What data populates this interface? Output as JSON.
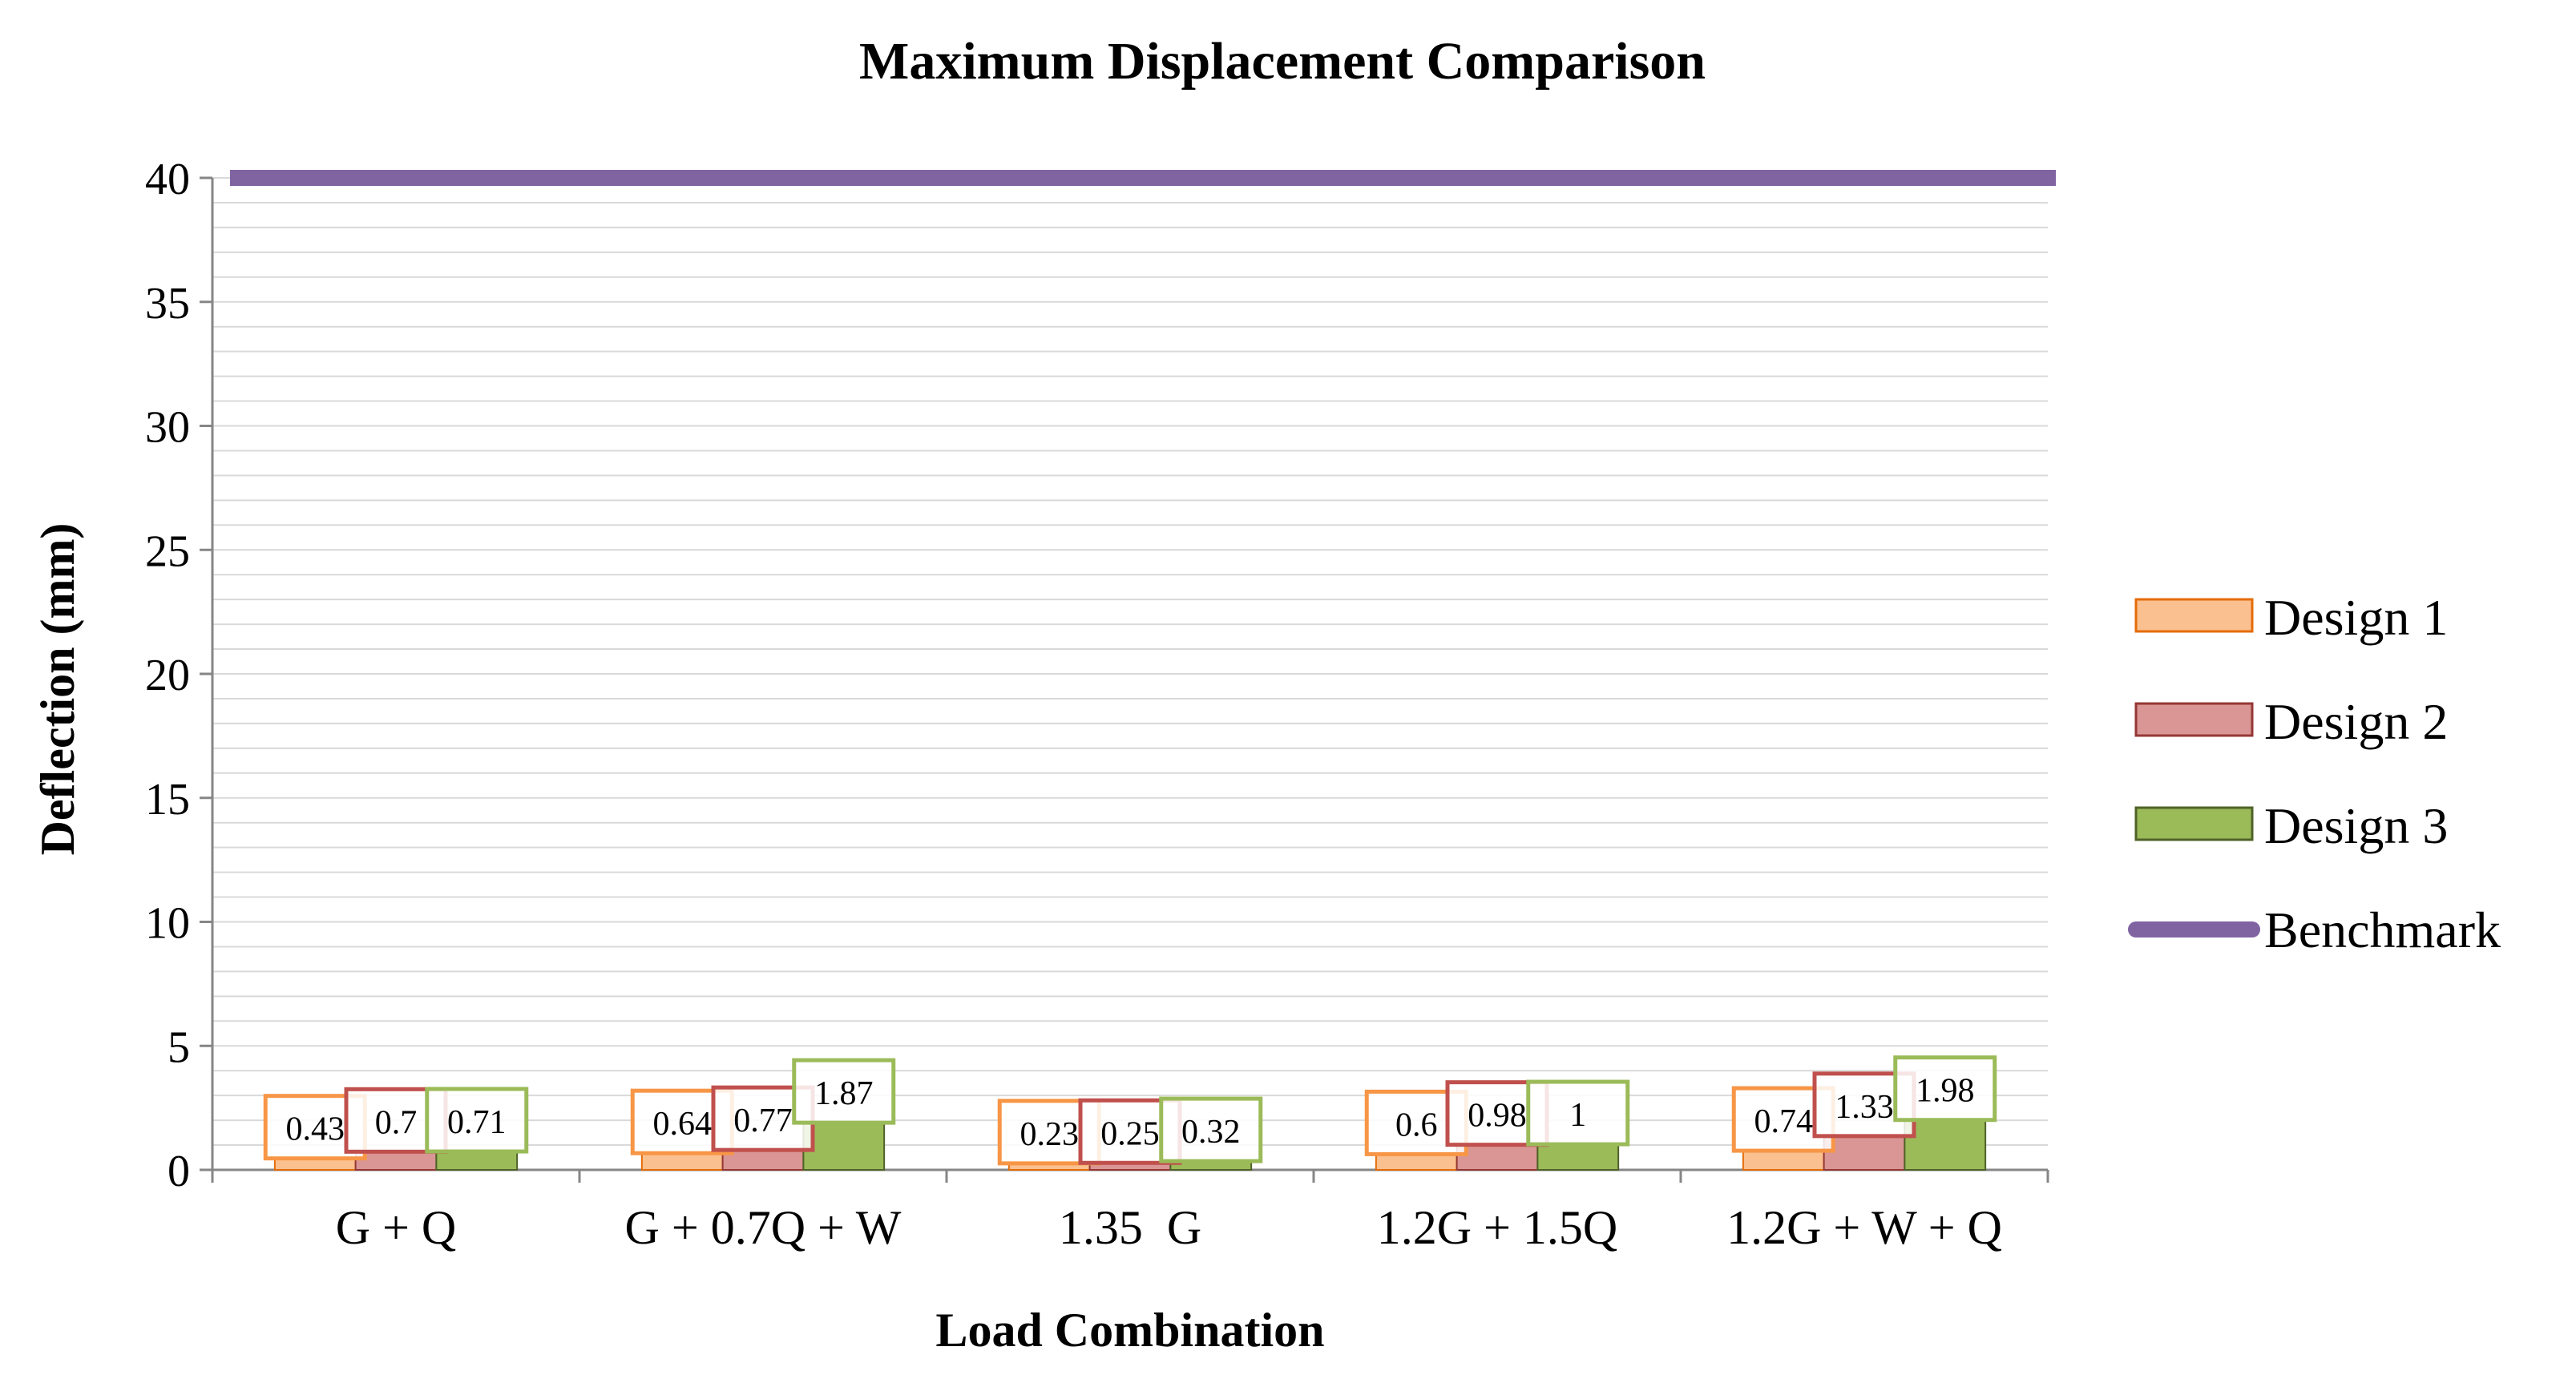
{
  "chart_data": {
    "type": "bar",
    "title": "Maximum Displacement Comparison",
    "xlabel": "Load Combination",
    "ylabel": "Deflection (mm)",
    "ylim": [
      0,
      40
    ],
    "y_major_step": 5,
    "y_minor_step": 1,
    "y_ticks": [
      "0",
      "5",
      "10",
      "15",
      "20",
      "25",
      "30",
      "35",
      "40"
    ],
    "grid": true,
    "legend_position": "right",
    "categories": [
      "G + Q",
      "G + 0.7Q + W",
      "1.35  G",
      "1.2G + 1.5Q",
      "1.2G + W + Q"
    ],
    "series": [
      {
        "name": "Design 1",
        "type": "bar",
        "values": [
          0.43,
          0.64,
          0.23,
          0.6,
          0.74
        ],
        "labels": [
          "0.43",
          "0.64",
          "0.23",
          "0.6",
          "0.74"
        ],
        "fill": "#fac090",
        "stroke": "#e46c0a",
        "label_box": "#f79646"
      },
      {
        "name": "Design 2",
        "type": "bar",
        "values": [
          0.7,
          0.77,
          0.25,
          0.98,
          1.33
        ],
        "labels": [
          "0.7",
          "0.77",
          "0.25",
          "0.98",
          "1.33"
        ],
        "fill": "#d99694",
        "stroke": "#953735",
        "label_box": "#c0504d"
      },
      {
        "name": "Design 3",
        "type": "bar",
        "values": [
          0.71,
          1.87,
          0.32,
          1,
          1.98
        ],
        "labels": [
          "0.71",
          "1.87",
          "0.32",
          "1",
          "1.98"
        ],
        "fill": "#9bbb59",
        "stroke": "#4f6228",
        "label_box": "#9bbb59"
      },
      {
        "name": "Benchmark",
        "type": "line",
        "values": [
          40,
          40,
          40,
          40,
          40
        ],
        "color": "#8064a2"
      }
    ]
  }
}
